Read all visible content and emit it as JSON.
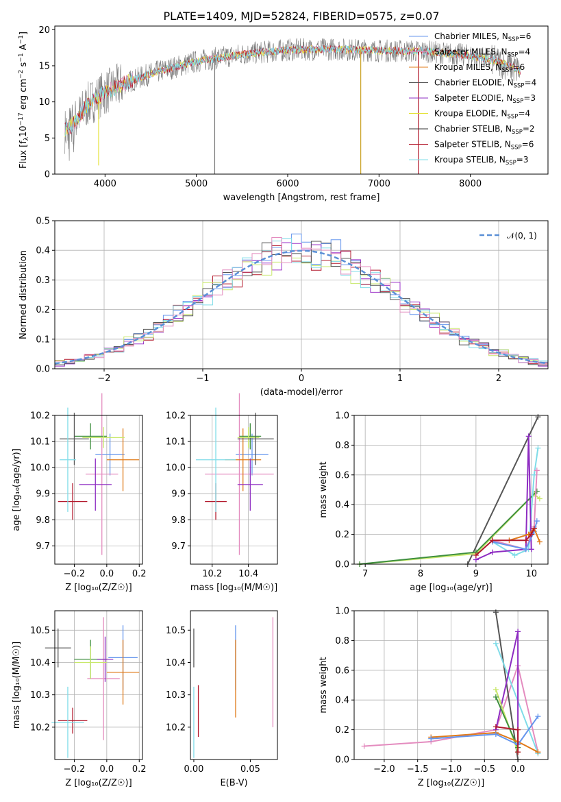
{
  "figure": {
    "title": "PLATE=1409, MJD=52824, FIBERID=0575, z=0.07"
  },
  "colors": [
    "#6495ed",
    "#e48cbf",
    "#e07b1a",
    "#3f8f3f",
    "#8e2cc2",
    "#e5e33a",
    "#555555",
    "#b2182b",
    "#7fdce8"
  ],
  "chart_data": [
    {
      "type": "line",
      "name": "spectrum",
      "xlabel": "wavelength [Angstrom, rest frame]",
      "ylabel_pre": "Flux [f",
      "ylabel_sub": "λ",
      "ylabel_mid": "10",
      "ylabel_exp": "−17",
      "ylabel_rest": " erg cm",
      "ylabel_exp2": "−2",
      "ylabel_rest2": " s",
      "ylabel_exp3": "−1",
      "ylabel_rest3": " A",
      "ylabel_exp4": "−1",
      "ylabel_end": "]",
      "xlim": [
        3450,
        8850
      ],
      "ylim": [
        0,
        20.5
      ],
      "xticks": [
        4000,
        5000,
        6000,
        7000,
        8000
      ],
      "yticks": [
        0,
        5,
        10,
        15,
        20
      ],
      "xticklabels": [
        "4000",
        "5000",
        "6000",
        "7000",
        "8000"
      ],
      "yticklabels": [
        "0",
        "5",
        "10",
        "15",
        "20"
      ],
      "continuum": {
        "x": [
          3560,
          3620,
          3700,
          3800,
          3900,
          4000,
          4200,
          4500,
          5000,
          5500,
          6000,
          6500,
          7000,
          7500,
          8000,
          8300,
          8550
        ],
        "y": [
          6.0,
          6.5,
          7.8,
          9.5,
          10.5,
          11.3,
          12.5,
          13.9,
          15.6,
          16.6,
          17.2,
          17.3,
          17.1,
          17.0,
          16.4,
          15.6,
          14.3
        ]
      },
      "spikes": [
        {
          "x": 3930,
          "y": 1.2
        },
        {
          "x": 5201,
          "y": 0.0
        },
        {
          "x": 6800,
          "y": 0.0
        },
        {
          "x": 7430,
          "y": 0.0
        }
      ],
      "legend": [
        {
          "label": "Chabrier MILES, N",
          "sub": "SSP",
          "eq": "=6"
        },
        {
          "label": "Salpeter MILES, N",
          "sub": "SSP",
          "eq": "=4"
        },
        {
          "label": "Kroupa MILES, N",
          "sub": "SSP",
          "eq": "=6"
        },
        {
          "label": "Chabrier ELODIE, N",
          "sub": "SSP",
          "eq": "=4"
        },
        {
          "label": "Salpeter ELODIE, N",
          "sub": "SSP",
          "eq": "=3"
        },
        {
          "label": "Kroupa ELODIE, N",
          "sub": "SSP",
          "eq": "=4"
        },
        {
          "label": "Chabrier STELIB, N",
          "sub": "SSP",
          "eq": "=2"
        },
        {
          "label": "Salpeter STELIB, N",
          "sub": "SSP",
          "eq": "=6"
        },
        {
          "label": "Kroupa STELIB, N",
          "sub": "SSP",
          "eq": "=3"
        }
      ],
      "legend_colors": [
        "#6495ed",
        "#e48cbf",
        "#e07b1a",
        "#555555",
        "#8e2cc2",
        "#e5e33a",
        "#333333",
        "#b2182b",
        "#7fdce8"
      ],
      "grid": false,
      "legend_position": "right"
    },
    {
      "type": "step-histogram",
      "name": "residuals",
      "xlabel": "(data-model)/error",
      "ylabel": "Normed distribution",
      "xlim": [
        -2.5,
        2.5
      ],
      "ylim": [
        0,
        0.5
      ],
      "xticks": [
        -2,
        -1,
        0,
        1,
        2
      ],
      "xticklabels": [
        "−2",
        "−1",
        "0",
        "1",
        "2"
      ],
      "yticks": [
        0.0,
        0.1,
        0.2,
        0.3,
        0.4,
        0.5
      ],
      "yticklabels": [
        "0.0",
        "0.1",
        "0.2",
        "0.3",
        "0.4",
        "0.5"
      ],
      "bin_width": 0.1,
      "gaussian_label": "𝒩(0, 1)",
      "gaussian_color": "#5a8fd6",
      "series_colors": [
        "#6495ed",
        "#9b30c8",
        "#b2182b",
        "#c8e86a",
        "#7fdce8",
        "#555555",
        "#e48cbf"
      ],
      "grid": true,
      "legend_position": "top-right"
    },
    {
      "type": "scatter",
      "name": "age-vs-Z",
      "xlabel": "Z [log₁₀(Z/Z☉)]",
      "ylabel": "age  [log₁₀(age/yr)]",
      "xlim": [
        -0.32,
        0.22
      ],
      "ylim": [
        9.63,
        10.2
      ],
      "xticks": [
        -0.2,
        0.0,
        0.2
      ],
      "xticklabels": [
        "−0.2",
        "0.0",
        "0.2"
      ],
      "yticks": [
        9.7,
        9.8,
        9.9,
        10.0,
        10.1,
        10.2
      ],
      "yticklabels": [
        "9.7",
        "9.8",
        "9.9",
        "10.0",
        "10.1",
        "10.2"
      ],
      "points": [
        {
          "x": 0.02,
          "y": 10.05,
          "xerr": 0.09,
          "yerr": 0.08,
          "color": "#6495ed"
        },
        {
          "x": -0.03,
          "y": 9.975,
          "xerr": 0.1,
          "yerr": 0.31,
          "color": "#e48cbf"
        },
        {
          "x": 0.1,
          "y": 10.03,
          "xerr": 0.1,
          "yerr": 0.12,
          "color": "#e07b1a"
        },
        {
          "x": -0.1,
          "y": 10.12,
          "xerr": 0.1,
          "yerr": 0.05,
          "color": "#3f8f3f"
        },
        {
          "x": -0.07,
          "y": 9.935,
          "xerr": 0.1,
          "yerr": 0.1,
          "color": "#8e2cc2"
        },
        {
          "x": -0.02,
          "y": 10.115,
          "xerr": 0.13,
          "yerr": 0.04,
          "color": "#c8e86a"
        },
        {
          "x": -0.2,
          "y": 10.11,
          "xerr": 0.09,
          "yerr": 0.1,
          "color": "#555555"
        },
        {
          "x": -0.21,
          "y": 9.87,
          "xerr": 0.09,
          "yerr": 0.07,
          "color": "#b2182b"
        },
        {
          "x": -0.24,
          "y": 10.03,
          "xerr": 0.05,
          "yerr": 0.2,
          "color": "#7fdce8"
        }
      ],
      "grid": true
    },
    {
      "type": "scatter",
      "name": "age-vs-mass",
      "xlabel": "mass [log₁₀(M/M☉)]",
      "ylabel": "",
      "xlim": [
        10.08,
        10.56
      ],
      "ylim": [
        9.63,
        10.2
      ],
      "xticks": [
        10.2,
        10.4
      ],
      "xticklabels": [
        "10.2",
        "10.4"
      ],
      "yticks": [
        9.7,
        9.8,
        9.9,
        10.0,
        10.1,
        10.2
      ],
      "yticklabels": [
        "9.7",
        "9.8",
        "9.9",
        "10.0",
        "10.1",
        "10.2"
      ],
      "points": [
        {
          "x": 10.42,
          "y": 10.05,
          "xerr": 0.09,
          "yerr": 0.08,
          "color": "#6495ed"
        },
        {
          "x": 10.35,
          "y": 9.975,
          "xerr": 0.19,
          "yerr": 0.31,
          "color": "#e48cbf"
        },
        {
          "x": 10.37,
          "y": 10.03,
          "xerr": 0.1,
          "yerr": 0.12,
          "color": "#e07b1a"
        },
        {
          "x": 10.41,
          "y": 10.12,
          "xerr": 0.06,
          "yerr": 0.05,
          "color": "#3f8f3f"
        },
        {
          "x": 10.41,
          "y": 9.935,
          "xerr": 0.07,
          "yerr": 0.1,
          "color": "#8e2cc2"
        },
        {
          "x": 10.4,
          "y": 10.115,
          "xerr": 0.06,
          "yerr": 0.04,
          "color": "#c8e86a"
        },
        {
          "x": 10.44,
          "y": 10.11,
          "xerr": 0.1,
          "yerr": 0.1,
          "color": "#555555"
        },
        {
          "x": 10.22,
          "y": 9.87,
          "xerr": 0.06,
          "yerr": 0.07,
          "color": "#b2182b"
        },
        {
          "x": 10.22,
          "y": 10.03,
          "xerr": 0.11,
          "yerr": 0.2,
          "color": "#7fdce8"
        }
      ],
      "grid": true
    },
    {
      "type": "line",
      "name": "weight-vs-age",
      "xlabel": "age  [log₁₀(age/yr)]",
      "ylabel": "mass weight",
      "xlim": [
        6.8,
        10.3
      ],
      "ylim": [
        0,
        1.0
      ],
      "xticks": [
        7,
        8,
        9,
        10
      ],
      "xticklabels": [
        "7",
        "8",
        "9",
        "10"
      ],
      "yticks": [
        0.0,
        0.2,
        0.4,
        0.6,
        0.8,
        1.0
      ],
      "yticklabels": [
        "0.0",
        "0.2",
        "0.4",
        "0.6",
        "0.8",
        "1.0"
      ],
      "series": [
        {
          "color": "#555555",
          "x": [
            8.85,
            10.12
          ],
          "y": [
            0.0,
            0.99
          ]
        },
        {
          "color": "#c8e86a",
          "x": [
            6.9,
            9.0,
            10.05,
            10.15
          ],
          "y": [
            0.0,
            0.07,
            0.47,
            0.44
          ]
        },
        {
          "color": "#3f8f3f",
          "x": [
            6.9,
            9.0,
            10.1
          ],
          "y": [
            0.0,
            0.08,
            0.49
          ]
        },
        {
          "color": "#7fdce8",
          "x": [
            9.3,
            9.7,
            9.95,
            10.05,
            10.12
          ],
          "y": [
            0.15,
            0.06,
            0.1,
            0.6,
            0.78
          ]
        },
        {
          "color": "#e48cbf",
          "x": [
            9.3,
            9.9,
            10.05,
            10.1
          ],
          "y": [
            0.16,
            0.1,
            0.25,
            0.63
          ]
        },
        {
          "color": "#8e2cc2",
          "x": [
            9.0,
            9.3,
            9.9,
            9.95,
            10.0
          ],
          "y": [
            0.03,
            0.08,
            0.1,
            0.86,
            0.1
          ]
        },
        {
          "color": "#6495ed",
          "x": [
            9.3,
            9.9,
            10.05,
            10.1
          ],
          "y": [
            0.15,
            0.1,
            0.22,
            0.29
          ]
        },
        {
          "color": "#e07b1a",
          "x": [
            9.6,
            9.95,
            10.05,
            10.15
          ],
          "y": [
            0.16,
            0.2,
            0.24,
            0.15
          ]
        },
        {
          "color": "#b2182b",
          "x": [
            9.0,
            9.3,
            9.9,
            10.0,
            10.05
          ],
          "y": [
            0.06,
            0.16,
            0.16,
            0.2,
            0.24
          ]
        }
      ],
      "grid": true
    },
    {
      "type": "scatter",
      "name": "mass-vs-Z",
      "xlabel": "Z [log₁₀(Z/Z☉)]",
      "ylabel": "mass [log₁₀(M/M☉)]",
      "xlim": [
        -0.32,
        0.22
      ],
      "ylim": [
        10.1,
        10.56
      ],
      "xticks": [
        -0.2,
        0.0,
        0.2
      ],
      "xticklabels": [
        "−0.2",
        "0.0",
        "0.2"
      ],
      "yticks": [
        10.2,
        10.3,
        10.4,
        10.5
      ],
      "yticklabels": [
        "10.2",
        "10.3",
        "10.4",
        "10.5"
      ],
      "points": [
        {
          "x": 0.1,
          "y": 10.415,
          "xerr": 0.09,
          "yerr": 0.1,
          "color": "#6495ed"
        },
        {
          "x": -0.02,
          "y": 10.35,
          "xerr": 0.1,
          "yerr": 0.19,
          "color": "#e48cbf"
        },
        {
          "x": 0.1,
          "y": 10.37,
          "xerr": 0.1,
          "yerr": 0.1,
          "color": "#e07b1a"
        },
        {
          "x": -0.1,
          "y": 10.41,
          "xerr": 0.1,
          "yerr": 0.06,
          "color": "#3f8f3f"
        },
        {
          "x": -0.01,
          "y": 10.41,
          "xerr": 0.05,
          "yerr": 0.07,
          "color": "#8e2cc2"
        },
        {
          "x": -0.1,
          "y": 10.4,
          "xerr": 0.1,
          "yerr": 0.05,
          "color": "#c8e86a"
        },
        {
          "x": -0.3,
          "y": 10.445,
          "xerr": 0.08,
          "yerr": 0.06,
          "color": "#555555"
        },
        {
          "x": -0.21,
          "y": 10.22,
          "xerr": 0.09,
          "yerr": 0.04,
          "color": "#b2182b"
        },
        {
          "x": -0.24,
          "y": 10.215,
          "xerr": 0.1,
          "yerr": 0.11,
          "color": "#7fdce8"
        }
      ],
      "grid": true
    },
    {
      "type": "scatter",
      "name": "mass-vs-ebv",
      "xlabel": "E(B-V)",
      "ylabel": "",
      "xlim": [
        -0.003,
        0.074
      ],
      "ylim": [
        10.1,
        10.56
      ],
      "xticks": [
        0.0,
        0.05
      ],
      "xticklabels": [
        "0.00",
        "0.05"
      ],
      "yticks": [
        10.2,
        10.3,
        10.4,
        10.5
      ],
      "yticklabels": [
        "10.2",
        "10.3",
        "10.4",
        "10.5"
      ],
      "points": [
        {
          "x": 0.0,
          "y": 10.445,
          "xerr": 0.0,
          "yerr": 0.06,
          "color": "#555555"
        },
        {
          "x": 0.0,
          "y": 10.215,
          "xerr": 0.0,
          "yerr": 0.11,
          "color": "#7fdce8"
        },
        {
          "x": 0.004,
          "y": 10.25,
          "xerr": 0.0,
          "yerr": 0.08,
          "color": "#b2182b"
        },
        {
          "x": 0.037,
          "y": 10.415,
          "xerr": 0.0,
          "yerr": 0.1,
          "color": "#6495ed"
        },
        {
          "x": 0.037,
          "y": 10.35,
          "xerr": 0.0,
          "yerr": 0.12,
          "color": "#e07b1a"
        },
        {
          "x": 0.07,
          "y": 10.37,
          "xerr": 0.0,
          "yerr": 0.17,
          "color": "#e48cbf"
        }
      ],
      "grid": false
    },
    {
      "type": "line",
      "name": "weight-vs-Z",
      "xlabel": "Z [log₁₀(Z/Z☉)]",
      "ylabel": "mass weight",
      "xlim": [
        -2.45,
        0.45
      ],
      "ylim": [
        0,
        1.0
      ],
      "xticks": [
        -2.0,
        -1.5,
        -1.0,
        -0.5,
        0.0
      ],
      "xticklabels": [
        "−2.0",
        "−1.5",
        "−1.0",
        "−0.5",
        "0.0"
      ],
      "yticks": [
        0.0,
        0.2,
        0.4,
        0.6,
        0.8,
        1.0
      ],
      "yticklabels": [
        "0.0",
        "0.2",
        "0.4",
        "0.6",
        "0.8",
        "1.0"
      ],
      "series": [
        {
          "color": "#e48cbf",
          "x": [
            -2.3,
            -1.3,
            -0.33,
            0.0,
            0.3
          ],
          "y": [
            0.09,
            0.12,
            0.2,
            0.63,
            0.05
          ]
        },
        {
          "color": "#555555",
          "x": [
            -0.33,
            0.0
          ],
          "y": [
            0.99,
            0.0
          ]
        },
        {
          "color": "#7fdce8",
          "x": [
            -0.33,
            0.3
          ],
          "y": [
            0.78,
            0.04
          ]
        },
        {
          "color": "#8e2cc2",
          "x": [
            -0.33,
            0.0,
            0.0
          ],
          "y": [
            0.2,
            0.86,
            0.1
          ]
        },
        {
          "color": "#c8e86a",
          "x": [
            -0.33,
            0.0
          ],
          "y": [
            0.47,
            0.05
          ]
        },
        {
          "color": "#3f8f3f",
          "x": [
            -0.33,
            0.0
          ],
          "y": [
            0.42,
            0.08
          ]
        },
        {
          "color": "#e07b1a",
          "x": [
            -1.3,
            -0.33,
            0.0,
            0.3
          ],
          "y": [
            0.15,
            0.18,
            0.12,
            0.05
          ]
        },
        {
          "color": "#6495ed",
          "x": [
            -1.3,
            -0.33,
            0.0,
            0.3
          ],
          "y": [
            0.14,
            0.17,
            0.1,
            0.29
          ]
        },
        {
          "color": "#b2182b",
          "x": [
            -0.33,
            0.0,
            0.0
          ],
          "y": [
            0.22,
            0.2,
            0.05
          ]
        }
      ],
      "grid": true
    }
  ]
}
